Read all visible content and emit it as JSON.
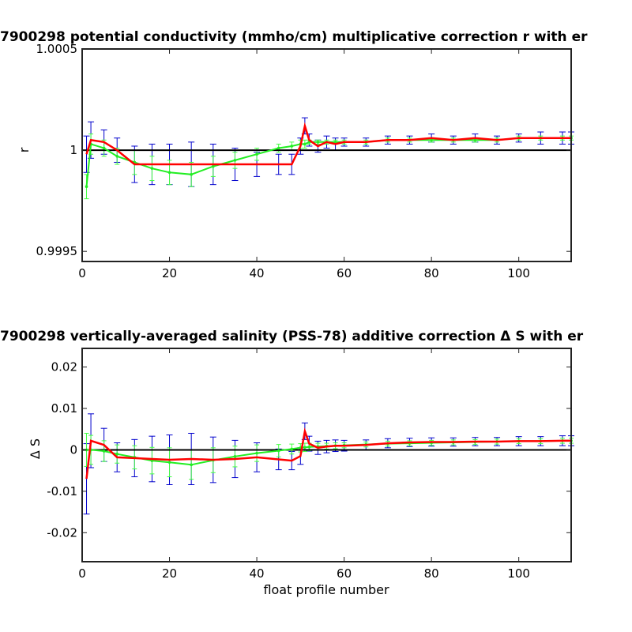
{
  "chart_data": [
    {
      "type": "line",
      "title": "7900298 potential conductivity (mmho/cm) multiplicative correction r with er",
      "xlabel": "",
      "ylabel": "r",
      "xlim": [
        0,
        112
      ],
      "ylim": [
        0.99945,
        1.0005
      ],
      "xticks": [
        0,
        20,
        40,
        60,
        80,
        100
      ],
      "xtick_labels": [
        "0",
        "20",
        "40",
        "60",
        "80",
        "100"
      ],
      "yticks": [
        0.9995,
        1.0,
        1.0005
      ],
      "ytick_labels": [
        "0.9995",
        "1",
        "1.0005"
      ],
      "reference_line": 1.0,
      "colors": {
        "final_correction": "#ff0000",
        "final_error": "#0000cc",
        "fit": "#22ee22",
        "fit_error": "#44ff44",
        "reference": "#000000"
      },
      "x": [
        1,
        2,
        5,
        8,
        12,
        16,
        20,
        25,
        30,
        35,
        40,
        45,
        48,
        50,
        51,
        52,
        54,
        56,
        58,
        60,
        65,
        70,
        75,
        80,
        85,
        90,
        95,
        100,
        105,
        110,
        112
      ],
      "series": [
        {
          "values": [
            0.99998,
            1.00005,
            1.00004,
            1.0,
            0.99993,
            0.99993,
            0.99993,
            0.99993,
            0.99993,
            0.99993,
            0.99993,
            0.99993,
            0.99993,
            1.00002,
            1.00012,
            1.00005,
            1.00002,
            1.00004,
            1.00003,
            1.00004,
            1.00004,
            1.00005,
            1.00005,
            1.00006,
            1.00005,
            1.00006,
            1.00005,
            1.00006,
            1.00006,
            1.00006,
            1.00006
          ]
        },
        {
          "values": [
            0.99982,
            1.00003,
            1.00001,
            0.99997,
            0.99994,
            0.99991,
            0.99989,
            0.99988,
            0.99992,
            0.99995,
            0.99998,
            1.00001,
            1.00002,
            1.00003,
            1.00003,
            1.00004,
            1.00004,
            1.00004,
            1.00004,
            1.00004,
            1.00004,
            1.00005,
            1.00005,
            1.00005,
            1.00005,
            1.00005,
            1.00005,
            1.00006,
            1.00006,
            1.00006,
            1.00006
          ]
        }
      ],
      "final_error_half_width": [
        9e-05,
        9e-05,
        6e-05,
        6e-05,
        9e-05,
        0.0001,
        0.0001,
        0.00011,
        0.0001,
        8e-05,
        6e-05,
        5e-05,
        5e-05,
        4e-05,
        4e-05,
        3e-05,
        3e-05,
        3e-05,
        3e-05,
        2e-05,
        2e-05,
        2e-05,
        2e-05,
        2e-05,
        2e-05,
        2e-05,
        2e-05,
        2e-05,
        3e-05,
        3e-05,
        3e-05
      ],
      "fit_error_half_width": [
        6e-05,
        5e-05,
        4e-05,
        4e-05,
        6e-05,
        6e-05,
        6e-05,
        6e-05,
        5e-05,
        4e-05,
        3e-05,
        2e-05,
        2e-05,
        2e-05,
        2e-05,
        1e-05,
        1e-05,
        1e-05,
        1e-05,
        1e-05,
        1e-05,
        1e-05,
        1e-05,
        1e-05,
        1e-05,
        1e-05,
        1e-05,
        1e-05,
        1e-05,
        1e-05,
        1e-05
      ]
    },
    {
      "type": "line",
      "title": "7900298 vertically-averaged salinity (PSS-78) additive correction Δ S with er",
      "xlabel": "float profile number",
      "ylabel": "Δ S",
      "xlim": [
        0,
        112
      ],
      "ylim": [
        -0.027,
        0.0245
      ],
      "xticks": [
        0,
        20,
        40,
        60,
        80,
        100
      ],
      "xtick_labels": [
        "0",
        "20",
        "40",
        "60",
        "80",
        "100"
      ],
      "yticks": [
        -0.02,
        -0.01,
        0,
        0.01,
        0.02
      ],
      "ytick_labels": [
        "-0.02",
        "-0.01",
        "0",
        "0.01",
        "0.02"
      ],
      "reference_line": 0,
      "colors": {
        "final_correction": "#ff0000",
        "final_error": "#0000cc",
        "fit": "#22ee22",
        "fit_error": "#44ff44",
        "reference": "#000000"
      },
      "x": [
        1,
        2,
        5,
        8,
        12,
        16,
        20,
        25,
        30,
        35,
        40,
        45,
        48,
        50,
        51,
        52,
        54,
        56,
        58,
        60,
        65,
        70,
        75,
        80,
        85,
        90,
        95,
        100,
        105,
        110,
        112
      ],
      "series": [
        {
          "values": [
            -0.007,
            0.0022,
            0.0012,
            -0.0018,
            -0.002,
            -0.0022,
            -0.0024,
            -0.0022,
            -0.0024,
            -0.0022,
            -0.0018,
            -0.0023,
            -0.0026,
            -0.0015,
            0.0045,
            0.0015,
            0.0005,
            0.0008,
            0.001,
            0.001,
            0.0012,
            0.0016,
            0.0018,
            0.0019,
            0.0019,
            0.002,
            0.002,
            0.0021,
            0.0021,
            0.0022,
            0.0022
          ]
        },
        {
          "values": [
            0.0,
            0.0,
            -0.0003,
            -0.001,
            -0.0018,
            -0.0026,
            -0.003,
            -0.0036,
            -0.0025,
            -0.0016,
            -0.0008,
            -0.0002,
            0.0002,
            0.0005,
            0.0006,
            0.0007,
            0.0008,
            0.0009,
            0.001,
            0.0011,
            0.0013,
            0.0015,
            0.0016,
            0.0017,
            0.0018,
            0.0019,
            0.002,
            0.0021,
            0.0021,
            0.0022,
            0.0022
          ]
        }
      ],
      "final_error_half_width": [
        0.0085,
        0.0065,
        0.004,
        0.0035,
        0.0045,
        0.0055,
        0.006,
        0.0062,
        0.0055,
        0.0045,
        0.0035,
        0.0025,
        0.0022,
        0.002,
        0.002,
        0.0018,
        0.0016,
        0.0015,
        0.0014,
        0.0013,
        0.0012,
        0.0011,
        0.001,
        0.001,
        0.001,
        0.001,
        0.001,
        0.0011,
        0.0011,
        0.0012,
        0.0012
      ],
      "fit_error_half_width": [
        0.004,
        0.0035,
        0.0025,
        0.0022,
        0.0028,
        0.0032,
        0.0035,
        0.0035,
        0.003,
        0.0025,
        0.002,
        0.0015,
        0.0012,
        0.001,
        0.001,
        0.0009,
        0.0008,
        0.0007,
        0.0007,
        0.0006,
        0.0006,
        0.0006,
        0.0006,
        0.0006,
        0.0006,
        0.0006,
        0.0006,
        0.0006,
        0.0006,
        0.0006,
        0.0006
      ]
    }
  ]
}
